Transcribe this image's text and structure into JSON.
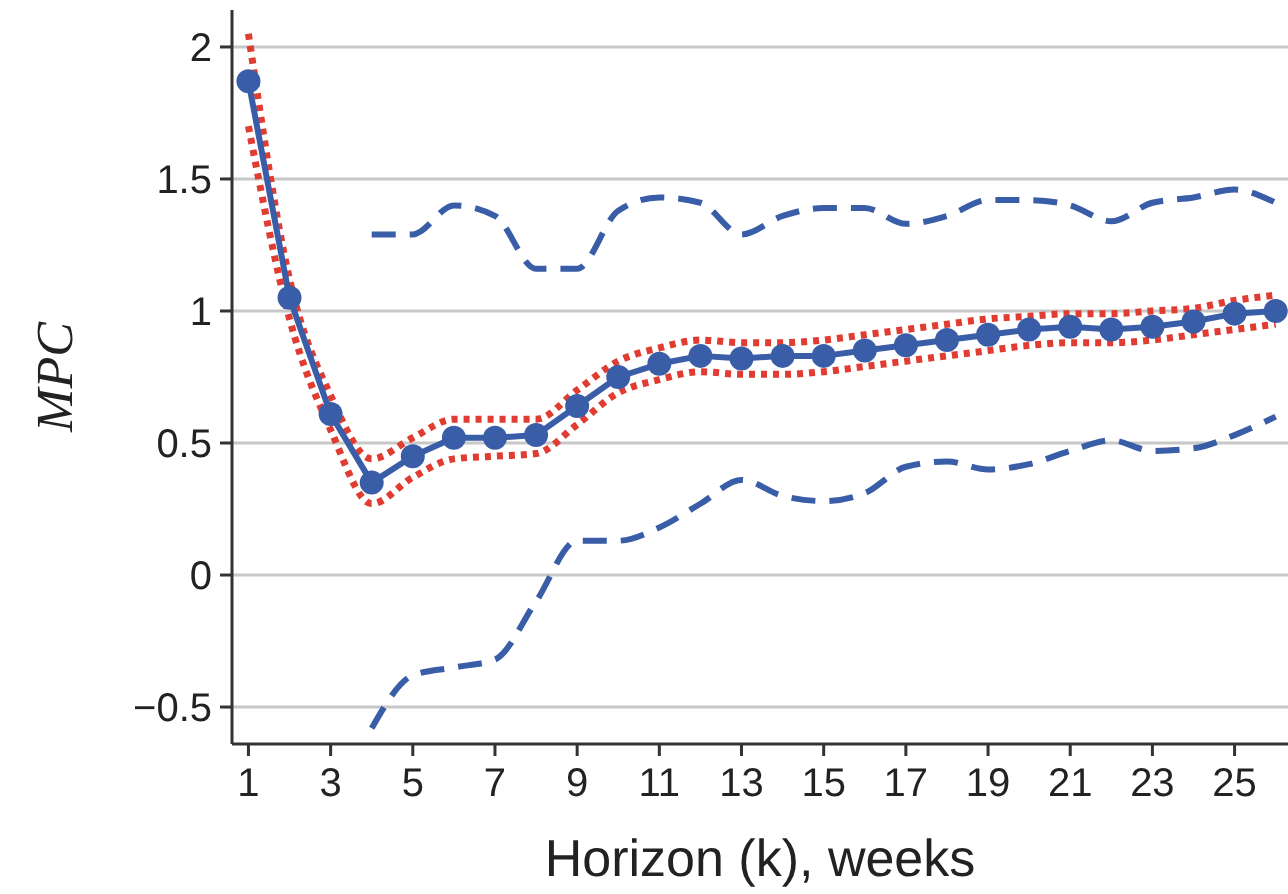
{
  "chart_data": {
    "type": "line",
    "xlabel": "Horizon (k), weeks",
    "ylabel": "MPC",
    "x": [
      1,
      2,
      3,
      4,
      5,
      6,
      7,
      8,
      9,
      10,
      11,
      12,
      13,
      14,
      15,
      16,
      17,
      18,
      19,
      20,
      21,
      22,
      23,
      24,
      25,
      26
    ],
    "xlim": [
      0.6,
      26.3
    ],
    "xticks": [
      1,
      3,
      5,
      7,
      9,
      11,
      13,
      15,
      17,
      19,
      21,
      23,
      25
    ],
    "ylim": [
      -0.64,
      2.14
    ],
    "yticks": [
      2,
      1.5,
      1,
      0.5,
      0,
      {
        "value": -0.5,
        "label": "−0.5"
      }
    ],
    "grid": "y",
    "series": [
      {
        "color": "#3a5da8",
        "line_style": "dashed",
        "marker": "none",
        "x": [
          4,
          5,
          6,
          7,
          8,
          9,
          10,
          11,
          12,
          13,
          14,
          15,
          16,
          17,
          18,
          19,
          20,
          21,
          22,
          23,
          24,
          25,
          26
        ],
        "values": [
          1.29,
          1.29,
          1.4,
          1.36,
          1.16,
          1.16,
          1.38,
          1.43,
          1.41,
          1.29,
          1.36,
          1.39,
          1.39,
          1.33,
          1.36,
          1.42,
          1.42,
          1.4,
          1.34,
          1.41,
          1.43,
          1.46,
          1.41
        ]
      },
      {
        "color": "#3a5da8",
        "line_style": "dashed",
        "marker": "none",
        "x": [
          4,
          5,
          6,
          7,
          8,
          9,
          10,
          11,
          12,
          13,
          14,
          15,
          16,
          17,
          18,
          19,
          20,
          21,
          22,
          23,
          24,
          25,
          26
        ],
        "values": [
          -0.58,
          -0.38,
          -0.35,
          -0.32,
          -0.1,
          0.13,
          0.13,
          0.18,
          0.27,
          0.36,
          0.3,
          0.28,
          0.31,
          0.41,
          0.43,
          0.4,
          0.42,
          0.47,
          0.51,
          0.47,
          0.48,
          0.53,
          0.6
        ]
      },
      {
        "color": "#e03c31",
        "line_style": "dotted",
        "marker": "none",
        "values": [
          2.05,
          1.12,
          0.68,
          0.44,
          0.52,
          0.59,
          0.59,
          0.59,
          0.7,
          0.81,
          0.86,
          0.89,
          0.88,
          0.88,
          0.89,
          0.91,
          0.93,
          0.95,
          0.97,
          0.98,
          0.99,
          0.99,
          1.0,
          1.01,
          1.04,
          1.06
        ]
      },
      {
        "color": "#e03c31",
        "line_style": "dotted",
        "marker": "none",
        "values": [
          1.7,
          0.97,
          0.55,
          0.27,
          0.37,
          0.44,
          0.45,
          0.46,
          0.57,
          0.69,
          0.74,
          0.77,
          0.76,
          0.76,
          0.77,
          0.79,
          0.81,
          0.83,
          0.85,
          0.87,
          0.88,
          0.88,
          0.89,
          0.91,
          0.93,
          0.95
        ]
      },
      {
        "color": "#3a5da8",
        "line_style": "solid",
        "marker": "circle",
        "values": [
          1.87,
          1.05,
          0.61,
          0.35,
          0.45,
          0.52,
          0.52,
          0.53,
          0.64,
          0.75,
          0.8,
          0.83,
          0.82,
          0.83,
          0.83,
          0.85,
          0.87,
          0.89,
          0.91,
          0.93,
          0.94,
          0.93,
          0.94,
          0.96,
          0.99,
          1.0
        ]
      }
    ]
  }
}
